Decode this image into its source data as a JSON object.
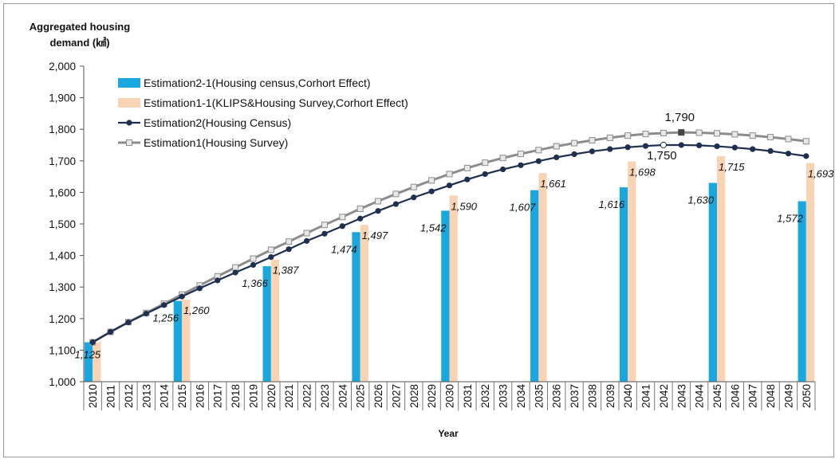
{
  "chart_data": {
    "type": "bar+line",
    "title": "",
    "ylabel_line1": "Aggregated housing",
    "ylabel_line2": "demand (㎢)",
    "xlabel": "Year",
    "ylim": [
      1000,
      2000
    ],
    "yticks": [
      "1,000",
      "1,100",
      "1,200",
      "1,300",
      "1,400",
      "1,500",
      "1,600",
      "1,700",
      "1,800",
      "1,900",
      "2,000"
    ],
    "ytick_values": [
      1000,
      1100,
      1200,
      1300,
      1400,
      1500,
      1600,
      1700,
      1800,
      1900,
      2000
    ],
    "years": [
      "2010",
      "2011",
      "2012",
      "2013",
      "2014",
      "2015",
      "2016",
      "2017",
      "2018",
      "2019",
      "2020",
      "2021",
      "2022",
      "2023",
      "2024",
      "2025",
      "2026",
      "2027",
      "2028",
      "2029",
      "2030",
      "2031",
      "2032",
      "2033",
      "2034",
      "2035",
      "2036",
      "2037",
      "2038",
      "2039",
      "2040",
      "2041",
      "2042",
      "2043",
      "2044",
      "2045",
      "2046",
      "2047",
      "2048",
      "2049",
      "2050"
    ],
    "bar_series": [
      {
        "name": "Estimation2-1(Housing census,Corhort Effect)",
        "color": "#1aa7e0",
        "years": [
          "2010",
          "2015",
          "2020",
          "2025",
          "2030",
          "2035",
          "2040",
          "2045",
          "2050"
        ],
        "values": [
          1125,
          1256,
          1366,
          1474,
          1542,
          1607,
          1616,
          1630,
          1572
        ],
        "labels": [
          "1,125",
          "1,256",
          "1,366",
          "1,474",
          "1,542",
          "1,607",
          "1,616",
          "1,630",
          "1,572"
        ]
      },
      {
        "name": "Estimation1-1(KLIPS&Housing Survey,Corhort Effect)",
        "color": "#f9d4b4",
        "years": [
          "2010",
          "2015",
          "2020",
          "2025",
          "2030",
          "2035",
          "2040",
          "2045",
          "2050"
        ],
        "values": [
          1125,
          1260,
          1387,
          1497,
          1590,
          1661,
          1698,
          1715,
          1693
        ],
        "labels": [
          "",
          "1,260",
          "1,387",
          "1,497",
          "1,590",
          "1,661",
          "1,698",
          "1,715",
          "1,693"
        ]
      }
    ],
    "line_series": [
      {
        "name": "Estimation2(Housing Census)",
        "color": "#1f2f4f",
        "marker": "circle",
        "values": [
          1125,
          1158,
          1188,
          1216,
          1243,
          1270,
          1296,
          1321,
          1346,
          1370,
          1395,
          1420,
          1446,
          1469,
          1493,
          1517,
          1541,
          1563,
          1584,
          1603,
          1622,
          1641,
          1658,
          1673,
          1686,
          1699,
          1711,
          1721,
          1730,
          1737,
          1743,
          1747,
          1750,
          1750,
          1749,
          1746,
          1742,
          1737,
          1731,
          1723,
          1715
        ]
      },
      {
        "name": "Estimation1(Housing Survey)",
        "color": "#8c8c8c",
        "marker": "square",
        "values": [
          1125,
          1158,
          1189,
          1218,
          1247,
          1276,
          1305,
          1334,
          1362,
          1390,
          1418,
          1444,
          1471,
          1497,
          1522,
          1548,
          1572,
          1595,
          1617,
          1638,
          1658,
          1677,
          1694,
          1709,
          1722,
          1734,
          1746,
          1756,
          1765,
          1773,
          1780,
          1785,
          1788,
          1790,
          1789,
          1787,
          1784,
          1780,
          1775,
          1769,
          1762
        ]
      }
    ],
    "annotations": [
      {
        "text": "1,790",
        "series": "Estimation1(Housing Survey)",
        "year": "2043",
        "value": 1790
      },
      {
        "text": "1,750",
        "series": "Estimation2(Housing Census)",
        "year": "2042",
        "value": 1750
      }
    ],
    "legend_position": "top-left inside plot",
    "grid": false
  }
}
